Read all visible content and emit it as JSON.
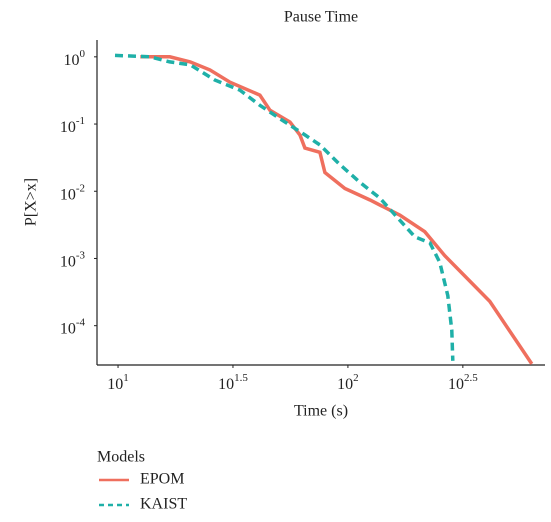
{
  "chart_data": {
    "type": "line",
    "title": "Pause Time",
    "x_label": "Time (s)",
    "y_label": "P[X>x]",
    "legend_title": "Models",
    "legend_position": "bottom",
    "xscale": "log",
    "yscale": "log",
    "grid": false,
    "xlim": [
      8.1,
      720
    ],
    "ylim": [
      2.6e-05,
      1.78
    ],
    "xticks": [
      {
        "value": 10,
        "label": "10",
        "exponent": "1"
      },
      {
        "value": 31.62,
        "label": "10",
        "exponent": "1.5"
      },
      {
        "value": 100,
        "label": "10",
        "exponent": "2"
      },
      {
        "value": 316.2,
        "label": "10",
        "exponent": "2.5"
      }
    ],
    "yticks": [
      {
        "value": 1,
        "label": "10",
        "exponent": "0"
      },
      {
        "value": 0.1,
        "label": "10",
        "exponent": "-1"
      },
      {
        "value": 0.01,
        "label": "10",
        "exponent": "-2"
      },
      {
        "value": 0.001,
        "label": "10",
        "exponent": "-3"
      },
      {
        "value": 0.0001,
        "label": "10",
        "exponent": "-4"
      }
    ],
    "series": [
      {
        "name": "EPOM",
        "color": "#ef6f5e",
        "linestyle": "solid",
        "x": [
          12.5,
          16.8,
          20.6,
          25.1,
          30.7,
          41.4,
          45.8,
          56.0,
          61.8,
          65.0,
          75.5,
          79.4,
          97.0,
          124.7,
          168.3,
          216,
          264,
          414,
          631
        ],
        "values": [
          1.0,
          1.0,
          0.84,
          0.64,
          0.42,
          0.27,
          0.16,
          0.107,
          0.069,
          0.044,
          0.038,
          0.019,
          0.011,
          0.0074,
          0.0044,
          0.0025,
          0.0011,
          0.00023,
          2.7e-05
        ]
      },
      {
        "name": "KAIST",
        "color": "#1fb0a8",
        "linestyle": "dashed",
        "x": [
          9.7,
          13.8,
          16.8,
          20.6,
          26.4,
          33.9,
          41.4,
          50.6,
          65.0,
          75.5,
          92.2,
          112.7,
          137.7,
          168.3,
          195.4,
          227.5,
          251,
          272,
          283,
          286
        ],
        "values": [
          1.05,
          1.0,
          0.84,
          0.76,
          0.45,
          0.32,
          0.19,
          0.12,
          0.069,
          0.049,
          0.025,
          0.0136,
          0.0079,
          0.0037,
          0.0021,
          0.0017,
          0.00087,
          0.00028,
          8.5e-05,
          3e-05
        ]
      }
    ]
  }
}
